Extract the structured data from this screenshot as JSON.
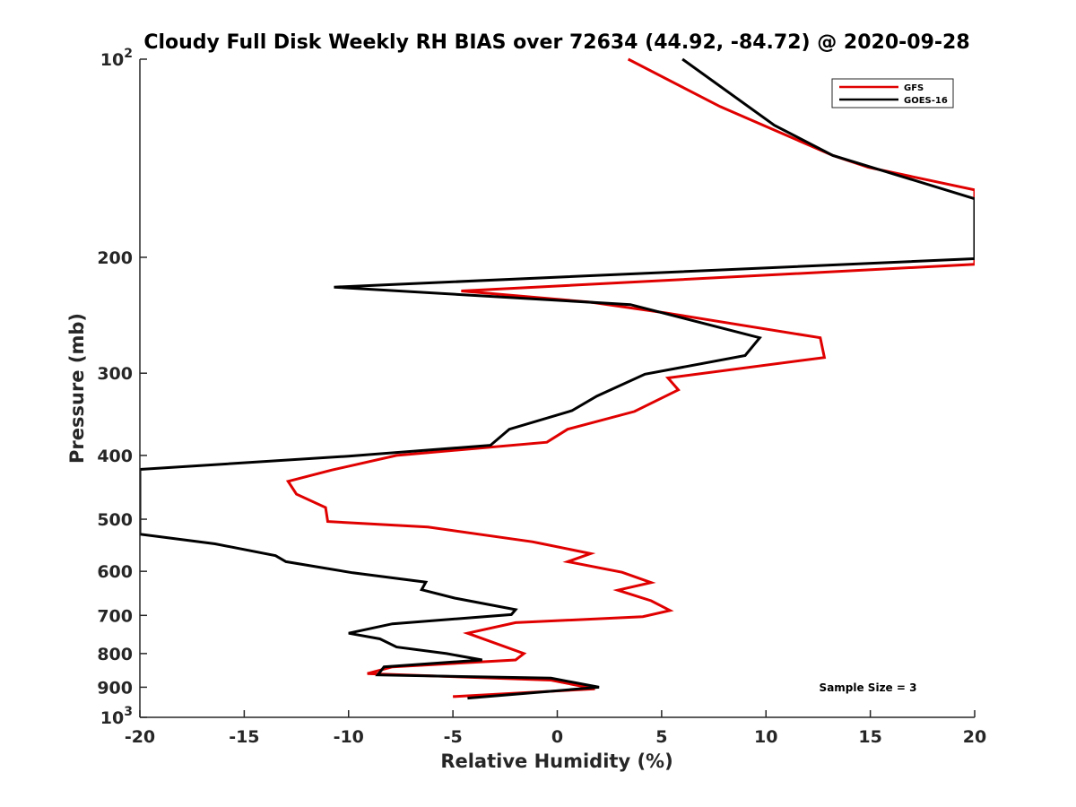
{
  "chart_data": {
    "type": "line",
    "title": "Cloudy Full Disk Weekly RH BIAS over 72634 (44.92, -84.72) @ 2020-09-28",
    "xlabel": "Relative Humidity (%)",
    "ylabel": "Pressure (mb)",
    "xlim": [
      -20,
      20
    ],
    "ylim": [
      100,
      1000
    ],
    "y_scale": "log",
    "y_reversed": true,
    "grid": false,
    "legend_position": "top-right",
    "x_ticks": [
      "-20",
      "-15",
      "-10",
      "-5",
      "0",
      "5",
      "10",
      "15",
      "20"
    ],
    "y_ticks": [
      {
        "value": 100,
        "base": "10",
        "exp": "2"
      },
      {
        "value": 200,
        "base": "200",
        "exp": ""
      },
      {
        "value": 300,
        "base": "300",
        "exp": ""
      },
      {
        "value": 400,
        "base": "400",
        "exp": ""
      },
      {
        "value": 500,
        "base": "500",
        "exp": ""
      },
      {
        "value": 600,
        "base": "600",
        "exp": ""
      },
      {
        "value": 700,
        "base": "700",
        "exp": ""
      },
      {
        "value": 800,
        "base": "800",
        "exp": ""
      },
      {
        "value": 900,
        "base": "900",
        "exp": ""
      },
      {
        "value": 1000,
        "base": "10",
        "exp": "3"
      }
    ],
    "annotation": "Sample Size = 3",
    "series": [
      {
        "name": "GFS",
        "color": "#e00000",
        "points": [
          [
            3.4,
            100
          ],
          [
            7.8,
            118
          ],
          [
            13.2,
            140
          ],
          [
            14.9,
            146
          ],
          [
            20.0,
            158
          ],
          [
            20.0,
            205
          ],
          [
            -4.6,
            225
          ],
          [
            1.6,
            234
          ],
          [
            5.2,
            243
          ],
          [
            12.6,
            265
          ],
          [
            12.8,
            284
          ],
          [
            5.3,
            305
          ],
          [
            5.8,
            318
          ],
          [
            3.7,
            343
          ],
          [
            0.5,
            365
          ],
          [
            -0.5,
            382
          ],
          [
            -7.7,
            400
          ],
          [
            -10.8,
            421
          ],
          [
            -12.9,
            438
          ],
          [
            -12.5,
            458
          ],
          [
            -11.1,
            480
          ],
          [
            -11.0,
            504
          ],
          [
            -6.2,
            514
          ],
          [
            -1.2,
            541
          ],
          [
            -0.7,
            545
          ],
          [
            1.6,
            564
          ],
          [
            0.5,
            580
          ],
          [
            3.1,
            602
          ],
          [
            4.5,
            624
          ],
          [
            2.9,
            641
          ],
          [
            4.5,
            665
          ],
          [
            5.4,
            688
          ],
          [
            4.1,
            703
          ],
          [
            -2.0,
            718
          ],
          [
            -4.3,
            745
          ],
          [
            -1.6,
            800
          ],
          [
            -2.0,
            818
          ],
          [
            -7.9,
            838
          ],
          [
            -9.1,
            858
          ],
          [
            -0.3,
            878
          ],
          [
            1.8,
            905
          ],
          [
            -5.0,
            930
          ]
        ]
      },
      {
        "name": "GOES-16",
        "color": "#000000",
        "points": [
          [
            6.0,
            100
          ],
          [
            10.4,
            126
          ],
          [
            13.2,
            140
          ],
          [
            20.0,
            163
          ],
          [
            20.0,
            201
          ],
          [
            -10.7,
            222
          ],
          [
            3.5,
            236
          ],
          [
            9.7,
            265
          ],
          [
            9.0,
            282
          ],
          [
            4.2,
            301
          ],
          [
            1.9,
            325
          ],
          [
            0.7,
            342
          ],
          [
            -2.3,
            365
          ],
          [
            -3.2,
            386
          ],
          [
            -10.0,
            401
          ],
          [
            -20.0,
            420
          ],
          [
            -20.0,
            527
          ],
          [
            -16.4,
            545
          ],
          [
            -13.5,
            568
          ],
          [
            -13.0,
            580
          ],
          [
            -9.8,
            603
          ],
          [
            -6.3,
            623
          ],
          [
            -6.5,
            640
          ],
          [
            -4.9,
            659
          ],
          [
            -2.0,
            686
          ],
          [
            -2.2,
            698
          ],
          [
            -7.9,
            721
          ],
          [
            -10.0,
            745
          ],
          [
            -8.5,
            760
          ],
          [
            -7.7,
            782
          ],
          [
            -5.3,
            800
          ],
          [
            -3.6,
            818
          ],
          [
            -8.3,
            838
          ],
          [
            -8.6,
            862
          ],
          [
            -0.3,
            872
          ],
          [
            2.0,
            900
          ],
          [
            -4.3,
            935
          ]
        ]
      }
    ]
  }
}
